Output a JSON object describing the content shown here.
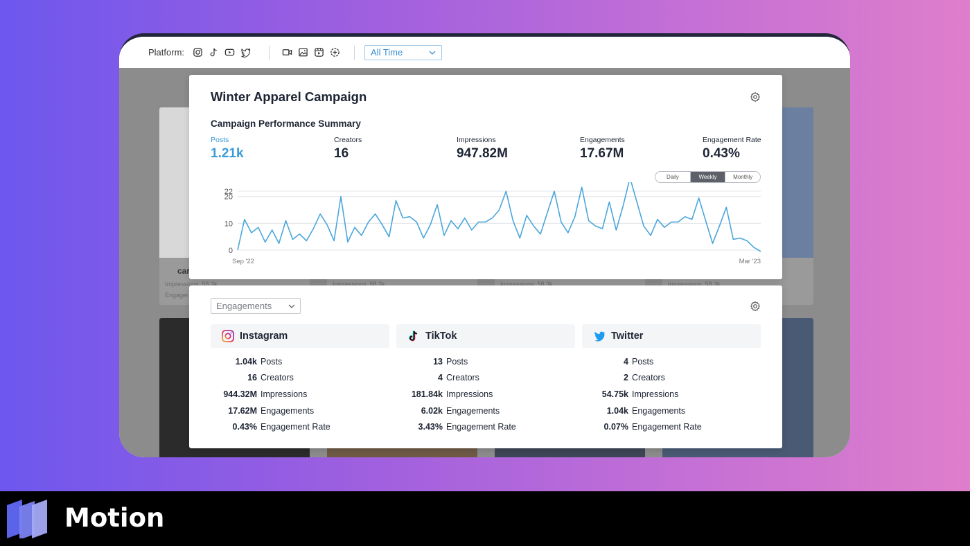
{
  "toolbar": {
    "platform_label": "Platform:",
    "platform_icons": [
      "instagram-icon",
      "tiktok-icon",
      "youtube-icon",
      "twitter-icon"
    ],
    "media_icons": [
      "video-icon",
      "image-icon",
      "reel-icon",
      "story-icon"
    ],
    "time_filter": "All Time"
  },
  "background": {
    "card_handle": "car",
    "impressions_text": "Impressions: 58.3k",
    "engagements_text": "Engager"
  },
  "campaign": {
    "title": "Winter Apparel Campaign",
    "summary_title": "Campaign Performance Summary",
    "metrics": [
      {
        "label": "Posts",
        "value": "1.21k"
      },
      {
        "label": "Creators",
        "value": "16"
      },
      {
        "label": "Impressions",
        "value": "947.82M"
      },
      {
        "label": "Engagements",
        "value": "17.67M"
      },
      {
        "label": "Engagement Rate",
        "value": "0.43%"
      }
    ],
    "granularity": [
      "Daily",
      "Weekly",
      "Monthly"
    ],
    "granularity_selected": "Weekly"
  },
  "chart_data": {
    "type": "line",
    "title": "",
    "xlabel": "",
    "ylabel": "",
    "x_tick_labels": [
      "Sep '22",
      "Mar '23"
    ],
    "y_ticks": [
      0,
      10,
      20,
      22
    ],
    "ylim": [
      0,
      22
    ],
    "grid": true,
    "series": [
      {
        "color": "#4aa6db",
        "values": [
          0,
          11.5,
          6.5,
          8.5,
          3,
          7.5,
          2.5,
          11,
          4,
          6,
          3.5,
          8,
          13.5,
          9.5,
          3.5,
          20,
          3,
          8.5,
          5.5,
          10.5,
          13.5,
          9.5,
          5,
          18.5,
          12,
          12.5,
          10.5,
          4.5,
          9.5,
          17,
          5.5,
          11,
          8,
          12,
          7.5,
          10.5,
          10.5,
          12,
          15,
          22,
          11,
          4.5,
          13,
          9,
          6,
          14,
          22,
          10.5,
          6.5,
          12.5,
          23.5,
          11,
          9,
          8,
          18,
          7.5,
          16.5,
          27,
          18,
          9,
          5.5,
          11.5,
          8.5,
          10.5,
          10.5,
          12.5,
          11.5,
          19.5,
          11,
          2.5,
          9,
          16,
          4,
          4.5,
          3.5,
          1,
          -0.5
        ]
      }
    ]
  },
  "breakdown": {
    "metric_select": "Engagements",
    "platforms": [
      {
        "name": "Instagram",
        "icon": "instagram-icon",
        "stats": [
          {
            "value": "1.04k",
            "label": "Posts"
          },
          {
            "value": "16",
            "label": "Creators"
          },
          {
            "value": "944.32M",
            "label": "Impressions"
          },
          {
            "value": "17.62M",
            "label": "Engagements"
          },
          {
            "value": "0.43%",
            "label": "Engagement Rate"
          }
        ]
      },
      {
        "name": "TikTok",
        "icon": "tiktok-icon",
        "stats": [
          {
            "value": "13",
            "label": "Posts"
          },
          {
            "value": "4",
            "label": "Creators"
          },
          {
            "value": "181.84k",
            "label": "Impressions"
          },
          {
            "value": "6.02k",
            "label": "Engagements"
          },
          {
            "value": "3.43%",
            "label": "Engagement Rate"
          }
        ]
      },
      {
        "name": "Twitter",
        "icon": "twitter-icon",
        "stats": [
          {
            "value": "4",
            "label": "Posts"
          },
          {
            "value": "2",
            "label": "Creators"
          },
          {
            "value": "54.75k",
            "label": "Impressions"
          },
          {
            "value": "1.04k",
            "label": "Engagements"
          },
          {
            "value": "0.07%",
            "label": "Engagement Rate"
          }
        ]
      }
    ]
  },
  "brand": {
    "name": "Motion"
  },
  "colors": {
    "accent": "#3a9bd8",
    "line": "#4aa6db",
    "footer": "#000000"
  }
}
